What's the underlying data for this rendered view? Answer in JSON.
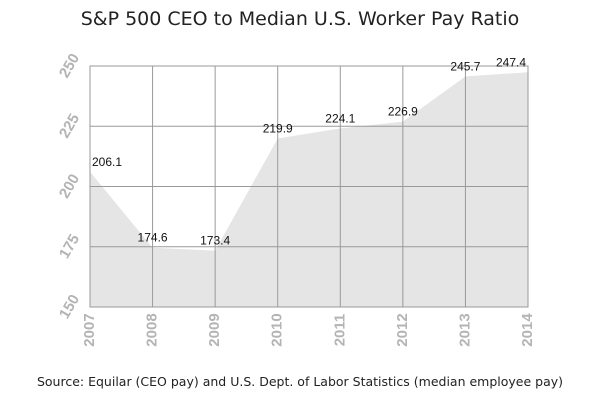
{
  "chart_data": {
    "type": "area",
    "title": "S&P 500 CEO to Median U.S. Worker Pay Ratio",
    "source": "Source: Equilar (CEO pay) and U.S. Dept. of Labor Statistics  (median employee pay)",
    "xlabel": "",
    "ylabel": "",
    "categories": [
      "2007",
      "2008",
      "2009",
      "2010",
      "2011",
      "2012",
      "2013",
      "2014"
    ],
    "values": [
      206.1,
      174.6,
      173.4,
      219.9,
      224.1,
      226.9,
      245.7,
      247.4
    ],
    "data_labels": [
      "206.1",
      "174.6",
      "173.4",
      "219.9",
      "224.1",
      "226.9",
      "245.7",
      "247.4"
    ],
    "ylim": [
      150,
      250
    ],
    "yticks": [
      150,
      175,
      200,
      225,
      250
    ],
    "grid": true,
    "legend": "none",
    "colors": {
      "fill": "#e5e5e5",
      "grid": "#9a9a9a",
      "tick_labels": "#b4b4b4",
      "text": "#222222"
    }
  }
}
